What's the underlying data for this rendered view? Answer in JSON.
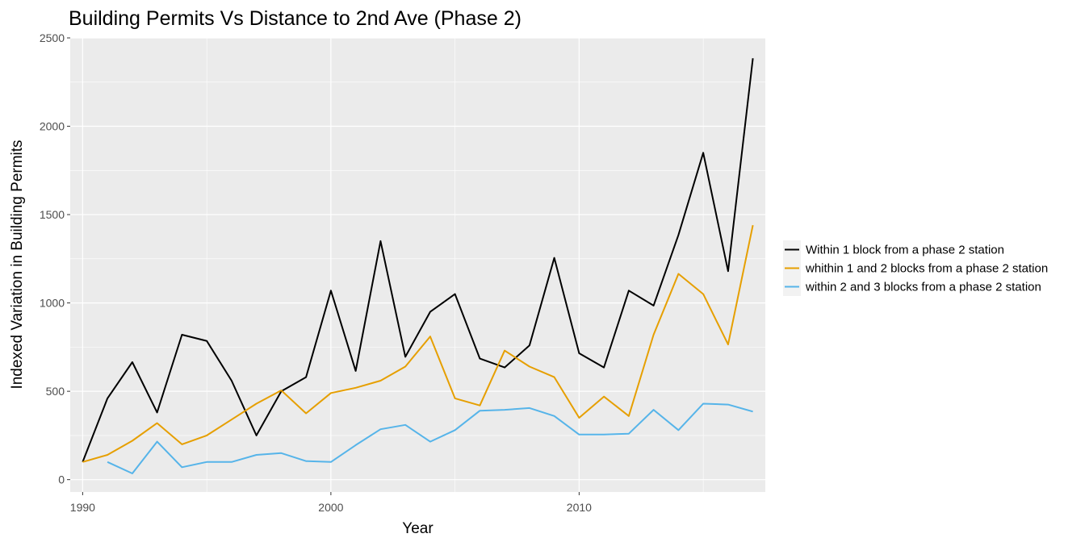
{
  "chart_data": {
    "type": "line",
    "title": "Building Permits Vs Distance to 2nd Ave (Phase 2)",
    "xlabel": "Year",
    "ylabel": "Indexed Variation in Building Permits",
    "xlim": [
      1989.5,
      2017.5
    ],
    "ylim": [
      -70,
      2500
    ],
    "x_ticks": [
      1990,
      2000,
      2010
    ],
    "x_tick_labels": [
      "1990",
      "2000",
      "2010"
    ],
    "y_ticks": [
      0,
      500,
      1000,
      1500,
      2000,
      2500
    ],
    "y_tick_labels": [
      "0",
      "500",
      "1000",
      "1500",
      "2000",
      "2500"
    ],
    "grid": true,
    "legend_position": "right",
    "background": "#ebebeb",
    "series": [
      {
        "name": "Within 1 block from a phase 2 station",
        "color": "#000000",
        "x": [
          1990,
          1991,
          1992,
          1993,
          1994,
          1995,
          1996,
          1997,
          1998,
          1999,
          2000,
          2001,
          2002,
          2003,
          2004,
          2005,
          2006,
          2007,
          2008,
          2009,
          2010,
          2011,
          2012,
          2013,
          2014,
          2015,
          2016,
          2017
        ],
        "y": [
          100,
          460,
          665,
          380,
          820,
          785,
          560,
          250,
          500,
          580,
          1070,
          615,
          1350,
          695,
          950,
          1050,
          685,
          635,
          760,
          1255,
          715,
          635,
          1070,
          985,
          1385,
          1850,
          1180,
          2385
        ]
      },
      {
        "name": "whithin 1 and 2 blocks from a phase 2 station",
        "color": "#e69f00",
        "x": [
          1990,
          1991,
          1992,
          1993,
          1994,
          1995,
          1996,
          1997,
          1998,
          1999,
          2000,
          2001,
          2002,
          2003,
          2004,
          2005,
          2006,
          2007,
          2008,
          2009,
          2010,
          2011,
          2012,
          2013,
          2014,
          2015,
          2016,
          2017
        ],
        "y": [
          100,
          140,
          220,
          320,
          200,
          250,
          340,
          430,
          505,
          375,
          490,
          520,
          560,
          640,
          810,
          460,
          420,
          730,
          640,
          580,
          350,
          470,
          360,
          820,
          1165,
          1050,
          765,
          1440
        ]
      },
      {
        "name": "within 2 and 3 blocks from a phase 2 station",
        "color": "#56b4e9",
        "x": [
          1991,
          1992,
          1993,
          1994,
          1995,
          1996,
          1997,
          1998,
          1999,
          2000,
          2001,
          2002,
          2003,
          2004,
          2005,
          2006,
          2007,
          2008,
          2009,
          2010,
          2011,
          2012,
          2013,
          2014,
          2015,
          2016,
          2017
        ],
        "y": [
          100,
          35,
          215,
          70,
          100,
          100,
          140,
          150,
          105,
          100,
          195,
          285,
          310,
          215,
          280,
          390,
          395,
          405,
          360,
          255,
          255,
          260,
          395,
          280,
          430,
          425,
          385
        ]
      }
    ]
  }
}
